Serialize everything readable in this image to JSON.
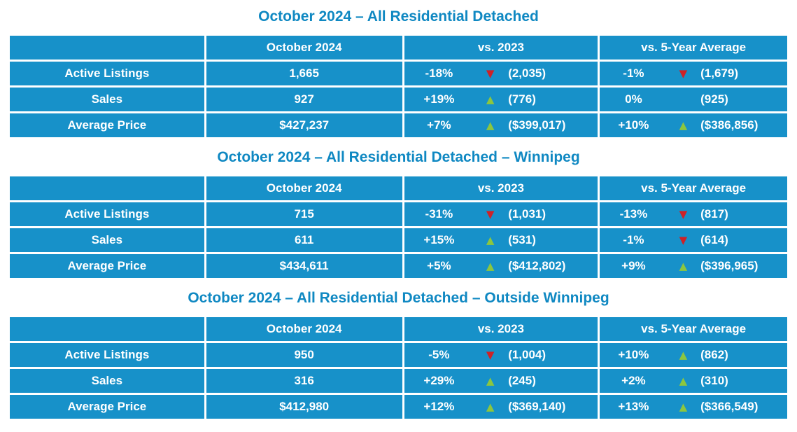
{
  "page": {
    "colors": {
      "table_fill_blue": "#1791C9",
      "title_text_blue": "#0F88C2",
      "cell_text_white": "#FFFFFF",
      "trend_up_green": "#8CC63F",
      "trend_down_red": "#CE2127",
      "grid_border_white": "#FFFFFF",
      "page_background": "#FFFFFF"
    }
  },
  "chart_data": [
    {
      "type": "table",
      "title": "October 2024 – All Residential Detached",
      "columns": [
        "",
        "October 2024",
        "vs. 2023",
        "vs. 5-Year Average"
      ],
      "rows": [
        {
          "label": "Active Listings",
          "october_2024": "1,665",
          "vs_2023": {
            "pct": "-18%",
            "trend": "down",
            "arrow": "▼",
            "value": "(2,035)"
          },
          "vs_5yr": {
            "pct": "-1%",
            "trend": "down",
            "arrow": "▼",
            "value": "(1,679)"
          }
        },
        {
          "label": "Sales",
          "october_2024": "927",
          "vs_2023": {
            "pct": "+19%",
            "trend": "up",
            "arrow": "▲",
            "value": "(776)"
          },
          "vs_5yr": {
            "pct": "0%",
            "trend": "none",
            "arrow": "",
            "value": "(925)"
          }
        },
        {
          "label": "Average Price",
          "october_2024": "$427,237",
          "vs_2023": {
            "pct": "+7%",
            "trend": "up",
            "arrow": "▲",
            "value": "($399,017)"
          },
          "vs_5yr": {
            "pct": "+10%",
            "trend": "up",
            "arrow": "▲",
            "value": "($386,856)"
          }
        }
      ]
    },
    {
      "type": "table",
      "title": "October 2024 – All Residential Detached – Winnipeg",
      "columns": [
        "",
        "October 2024",
        "vs. 2023",
        "vs. 5-Year Average"
      ],
      "rows": [
        {
          "label": "Active Listings",
          "october_2024": "715",
          "vs_2023": {
            "pct": "-31%",
            "trend": "down",
            "arrow": "▼",
            "value": "(1,031)"
          },
          "vs_5yr": {
            "pct": "-13%",
            "trend": "down",
            "arrow": "▼",
            "value": "(817)"
          }
        },
        {
          "label": "Sales",
          "october_2024": "611",
          "vs_2023": {
            "pct": "+15%",
            "trend": "up",
            "arrow": "▲",
            "value": "(531)"
          },
          "vs_5yr": {
            "pct": "-1%",
            "trend": "down",
            "arrow": "▼",
            "value": "(614)"
          }
        },
        {
          "label": "Average Price",
          "october_2024": "$434,611",
          "vs_2023": {
            "pct": "+5%",
            "trend": "up",
            "arrow": "▲",
            "value": "($412,802)"
          },
          "vs_5yr": {
            "pct": "+9%",
            "trend": "up",
            "arrow": "▲",
            "value": "($396,965)"
          }
        }
      ]
    },
    {
      "type": "table",
      "title": "October 2024 – All Residential Detached – Outside Winnipeg",
      "columns": [
        "",
        "October 2024",
        "vs. 2023",
        "vs. 5-Year Average"
      ],
      "rows": [
        {
          "label": "Active Listings",
          "october_2024": "950",
          "vs_2023": {
            "pct": "-5%",
            "trend": "down",
            "arrow": "▼",
            "value": "(1,004)"
          },
          "vs_5yr": {
            "pct": "+10%",
            "trend": "up",
            "arrow": "▲",
            "value": "(862)"
          }
        },
        {
          "label": "Sales",
          "october_2024": "316",
          "vs_2023": {
            "pct": "+29%",
            "trend": "up",
            "arrow": "▲",
            "value": "(245)"
          },
          "vs_5yr": {
            "pct": "+2%",
            "trend": "up",
            "arrow": "▲",
            "value": "(310)"
          }
        },
        {
          "label": "Average Price",
          "october_2024": "$412,980",
          "vs_2023": {
            "pct": "+12%",
            "trend": "up",
            "arrow": "▲",
            "value": "($369,140)"
          },
          "vs_5yr": {
            "pct": "+13%",
            "trend": "up",
            "arrow": "▲",
            "value": "($366,549)"
          }
        }
      ]
    }
  ]
}
